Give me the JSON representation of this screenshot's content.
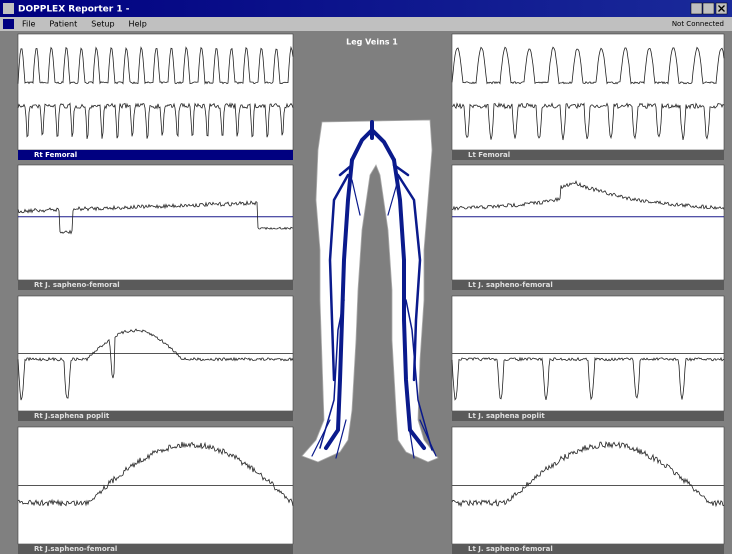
{
  "window": {
    "title": "DOPPLEX Reporter 1 -",
    "status": "Not Connected"
  },
  "menu": [
    "File",
    "Patient",
    "Setup",
    "Help"
  ],
  "view_title": "Leg Veins 1",
  "panels": [
    {
      "label": "Rt Femoral"
    },
    {
      "label": "Lt Femoral"
    },
    {
      "label": "Rt J. sapheno-femoral"
    },
    {
      "label": "Lt J. sapheno-femoral"
    },
    {
      "label": "Rt J.saphena poplit"
    },
    {
      "label": "Lt J. saphena poplit"
    },
    {
      "label": "Rt J.sapheno-femoral"
    },
    {
      "label": "Lt J. sapheno-femoral"
    }
  ]
}
